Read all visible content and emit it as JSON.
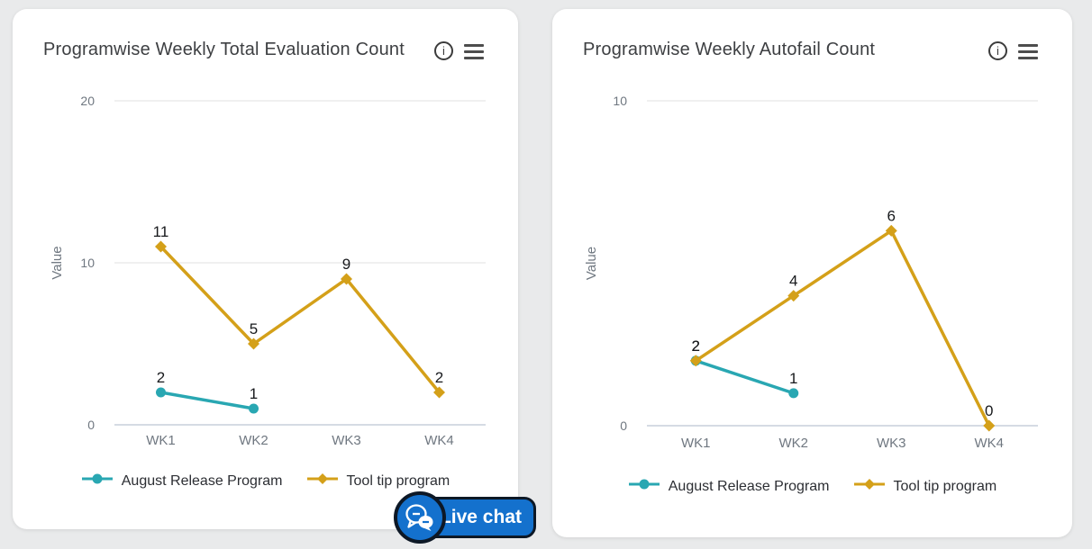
{
  "page": {
    "background_color": "#e9eaeb"
  },
  "chart_data": [
    {
      "type": "line",
      "title": "Programwise Weekly Total Evaluation Count",
      "ylabel": "Value",
      "xlabel": "",
      "categories": [
        "WK1",
        "WK2",
        "WK3",
        "WK4"
      ],
      "ylim": [
        0,
        20
      ],
      "yticks": [
        0,
        10,
        20
      ],
      "grid": true,
      "legend_position": "bottom",
      "series": [
        {
          "name": "August Release Program",
          "color": "#29A7B2",
          "marker": "circle",
          "values": [
            2,
            1,
            null,
            null
          ]
        },
        {
          "name": "Tool tip program",
          "color": "#D4A019",
          "marker": "diamond",
          "values": [
            11,
            5,
            9,
            2
          ]
        }
      ],
      "header_icons": [
        "info-icon",
        "menu-icon"
      ]
    },
    {
      "type": "line",
      "title": "Programwise Weekly Autofail Count",
      "ylabel": "Value",
      "xlabel": "",
      "categories": [
        "WK1",
        "WK2",
        "WK3",
        "WK4"
      ],
      "ylim": [
        0,
        10
      ],
      "yticks": [
        0,
        10
      ],
      "grid": true,
      "legend_position": "bottom",
      "series": [
        {
          "name": "August Release Program",
          "color": "#29A7B2",
          "marker": "circle",
          "values": [
            2,
            1,
            null,
            null
          ]
        },
        {
          "name": "Tool tip program",
          "color": "#D4A019",
          "marker": "diamond",
          "values": [
            2,
            4,
            6,
            0
          ]
        }
      ],
      "header_icons": [
        "info-icon",
        "menu-icon"
      ]
    }
  ],
  "live_chat": {
    "label": "Live chat",
    "background_color": "#1471CD",
    "icon": "chat-bubbles-icon"
  }
}
